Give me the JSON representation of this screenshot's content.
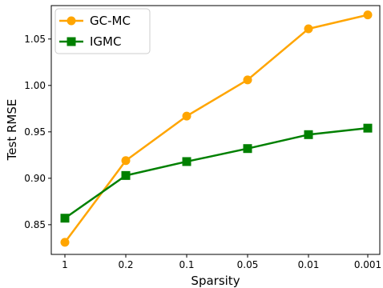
{
  "chart_data": {
    "type": "line",
    "title": "",
    "xlabel": "Sparsity",
    "ylabel": "Test RMSE",
    "categories": [
      "1",
      "0.2",
      "0.1",
      "0.05",
      "0.01",
      "0.001"
    ],
    "ylim": [
      0.818,
      1.086
    ],
    "yticks": [
      0.85,
      0.9,
      0.95,
      1.0,
      1.05
    ],
    "ytick_labels": [
      "0.85",
      "0.90",
      "0.95",
      "1.00",
      "1.05"
    ],
    "grid": false,
    "legend_position": "top-left",
    "series": [
      {
        "name": "GC-MC",
        "values": [
          0.831,
          0.919,
          0.967,
          1.006,
          1.061,
          1.076
        ],
        "color": "#FFA500",
        "marker": "circle"
      },
      {
        "name": "IGMC",
        "values": [
          0.857,
          0.903,
          0.918,
          0.932,
          0.947,
          0.954
        ],
        "color": "#008000",
        "marker": "square"
      }
    ]
  }
}
